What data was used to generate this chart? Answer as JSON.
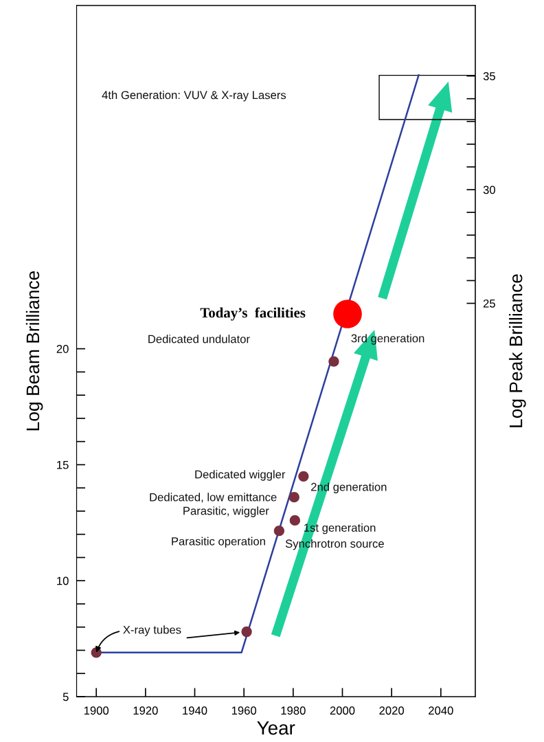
{
  "chart_data": {
    "type": "line",
    "xlabel": "Year",
    "ylabel": "Log Beam Brilliance",
    "y2label": "Log Peak Brilliance",
    "xlim": [
      1892,
      2054
    ],
    "xticks": [
      1900,
      1920,
      1940,
      1960,
      1980,
      2000,
      2020,
      2040
    ],
    "ylim": [
      5,
      34.8
    ],
    "yticks": [
      5,
      {
        "value": 6,
        "label": null
      },
      {
        "value": 7,
        "label": null
      },
      {
        "value": 8,
        "label": null
      },
      {
        "value": 9,
        "label": null
      },
      10,
      {
        "value": 11,
        "label": null
      },
      {
        "value": 12,
        "label": null
      },
      {
        "value": 13,
        "label": null
      },
      {
        "value": 14,
        "label": null
      },
      15,
      {
        "value": 16,
        "label": null
      },
      {
        "value": 17,
        "label": null
      },
      {
        "value": 18,
        "label": null
      },
      {
        "value": 19,
        "label": null
      },
      20
    ],
    "y2lim": [
      7.7,
      38.1
    ],
    "y2ticks": [
      25,
      {
        "value": 26,
        "label": null
      },
      {
        "value": 27,
        "label": null
      },
      {
        "value": 28,
        "label": null
      },
      {
        "value": 29,
        "label": null
      },
      30,
      {
        "value": 31,
        "label": null
      },
      {
        "value": 32,
        "label": null
      },
      {
        "value": 33,
        "label": null
      },
      {
        "value": 34,
        "label": null
      },
      35
    ],
    "grid": false,
    "marker": "circle",
    "series": [
      {
        "color": "#2b3f9e",
        "marker": "none",
        "x": [
          1900,
          1959,
          2031
        ],
        "values": [
          6.9,
          6.9,
          31.8
        ]
      },
      {
        "type": "scatter",
        "color": "#7a2f3f",
        "x": [
          1900,
          1961.1,
          1974.3,
          1980.7,
          1980.4,
          1984.2,
          1996.5
        ],
        "values": [
          6.9,
          7.8,
          12.15,
          12.6,
          13.6,
          14.5,
          19.45
        ]
      },
      {
        "type": "scatter",
        "color": "#ff0000",
        "x": [
          2002.1
        ],
        "values": [
          21.5
        ]
      }
    ],
    "annotations": [
      {
        "text": "X-ray tubes",
        "x": 1900,
        "y": 6.9
      },
      {
        "text": "Today’s  facilities",
        "x": 2002.1,
        "y": 21.5
      },
      {
        "text": "Dedicated wiggler",
        "x": 1984.2,
        "y": 14.5
      },
      {
        "text": "Dedicated, low emittance",
        "x": 1980.4,
        "y": 13.6
      },
      {
        "text": "Parasitic, wiggler",
        "x": 1980.7,
        "y": 12.6
      },
      {
        "text": "Parasitic operation",
        "x": 1974.3,
        "y": 12.15
      },
      "Dedicated undulator",
      "4th Generation: VUV & X-ray Lasers",
      "3rd generation",
      "2nd generation",
      "1st generation",
      "Synchrotron source"
    ]
  }
}
